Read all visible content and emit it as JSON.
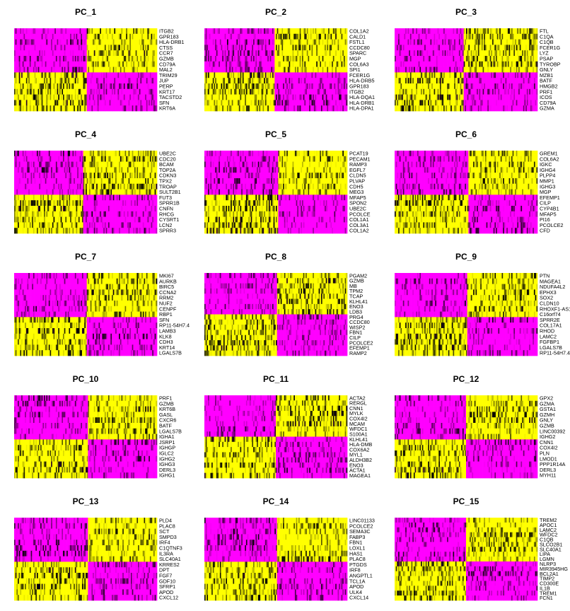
{
  "chart_data": {
    "type": "heatmap",
    "colorscale": {
      "low": "#ff00ff",
      "mid": "#000000",
      "high": "#ffff00"
    },
    "panels": [
      {
        "title": "PC_1",
        "genes": [
          "ITGB2",
          "GPR183",
          "HLA-DRB1",
          "CTSS",
          "CCR7",
          "GZMB",
          "CD79A",
          "MAL2",
          "TRIM29",
          "JUP",
          "PERP",
          "KRT17",
          "TACSTD2",
          "SFN",
          "KRT6A"
        ]
      },
      {
        "title": "PC_2",
        "genes": [
          "COL1A2",
          "CALD1",
          "FSTL1",
          "CCDC80",
          "SPARC",
          "MGP",
          "COL6A3",
          "SPI1",
          "FCER1G",
          "HLA-DRB5",
          "GPR183",
          "ITGB2",
          "HLA-DQA1",
          "HLA-DRB1",
          "HLA-DPA1"
        ]
      },
      {
        "title": "PC_3",
        "genes": [
          "FTL",
          "C1QA",
          "C1QB",
          "FCER1G",
          "LYZ",
          "PSAP",
          "TYROBP",
          "GNLY",
          "MZB1",
          "BATF",
          "HMGB2",
          "PRF1",
          "ICOS",
          "CD79A",
          "GZMA"
        ]
      },
      {
        "title": "PC_4",
        "genes": [
          "UBE2C",
          "CDC20",
          "BCAM",
          "TOP2A",
          "CDKN3",
          "TPX2",
          "TROAP",
          "SULT2B1",
          "FUT3",
          "SPRR1B",
          "CNFN",
          "RHCG",
          "CYSRT1",
          "LCN2",
          "SPRR3"
        ]
      },
      {
        "title": "PC_5",
        "genes": [
          "PCAT19",
          "PECAM1",
          "RAMP3",
          "EGFL7",
          "CLDN5",
          "PLVAP",
          "CDH5",
          "MEG3",
          "MFAP5",
          "SPON2",
          "UBE2C",
          "PCOLCE",
          "COL1A1",
          "COL3A1",
          "COL1A2"
        ]
      },
      {
        "title": "PC_6",
        "genes": [
          "GREM1",
          "COL6A2",
          "IGKC",
          "IGHG4",
          "PLPP4",
          "MMP1",
          "IGHG3",
          "MGP",
          "EFEMP1",
          "CILP",
          "CYP4B1",
          "MFAP5",
          "PI16",
          "PCOLCE2",
          "CFD"
        ]
      },
      {
        "title": "PC_7",
        "genes": [
          "MKI67",
          "AURKB",
          "BIRC5",
          "CCNA2",
          "RRM2",
          "NUF2",
          "CENPF",
          "RBP1",
          "SFN",
          "RP11-54H7.4",
          "LAMB3",
          "KLK8",
          "CDH3",
          "KRT14",
          "LGALS7B"
        ]
      },
      {
        "title": "PC_8",
        "genes": [
          "PGAM2",
          "GZMB",
          "MB",
          "TPM2",
          "TCAP",
          "KLHL41",
          "ENO3",
          "LDB3",
          "PRG4",
          "CCDC80",
          "WISP2",
          "FBN1",
          "CILP",
          "PCOLCE2",
          "EFEMP1",
          "RAMP2"
        ]
      },
      {
        "title": "PC_9",
        "genes": [
          "PTN",
          "MAGEA1",
          "NDUFA4L2",
          "EPHX3",
          "SOX2",
          "CLDN10",
          "RHOXF1-AS1",
          "C16orf74",
          "SPRR2E",
          "COL17A1",
          "RHOD",
          "LAMC2",
          "FGFBP1",
          "LGALS7B",
          "RP11-54H7.4"
        ]
      },
      {
        "title": "PC_10",
        "genes": [
          "PRF1",
          "GZMB",
          "KRT6B",
          "GASL",
          "CXCR6",
          "BATF",
          "LGALS7B",
          "IGHA1",
          "JSRP1",
          "IGHGP",
          "IGLC2",
          "IGHG2",
          "IGHG3",
          "DERL3",
          "IGHG1"
        ]
      },
      {
        "title": "PC_11",
        "genes": [
          "ACTA2",
          "RERGL",
          "CNN1",
          "MYLK",
          "COX4I2",
          "MCAM",
          "WFDC1",
          "S100A1",
          "KLHL41",
          "HLA-DMB",
          "COX6A2",
          "MYL1",
          "ALDH3B2",
          "ENO3",
          "ACTA1",
          "MAGEA1"
        ]
      },
      {
        "title": "PC_12",
        "genes": [
          "GPX2",
          "GZMA",
          "GSTA1",
          "GZMH",
          "GNLY",
          "GZMB",
          "LINC00392",
          "IGHG2",
          "CNN1",
          "COX4I2",
          "PLN",
          "LMOD1",
          "PPP1R14A",
          "DERL3",
          "MYH11"
        ]
      },
      {
        "title": "PC_13",
        "genes": [
          "PLD4",
          "PLAC8",
          "SCT",
          "SMPD3",
          "IRF4",
          "C1QTNF3",
          "IL3RA",
          "SLC40A1",
          "KRRES2",
          "DPT",
          "FGF7",
          "GDF10",
          "SFRP1",
          "APOD",
          "CXCL12"
        ]
      },
      {
        "title": "PC_14",
        "genes": [
          "LINC01133",
          "PCOLCE2",
          "SEMA3C",
          "FABP3",
          "FBN1",
          "LOXL1",
          "HAS1",
          "PLAC8",
          "PTGDS",
          "IRF8",
          "ANGPTL1",
          "TCL1A",
          "APOD",
          "ULK4",
          "CXCL14"
        ]
      },
      {
        "title": "PC_15",
        "genes": [
          "TREM2",
          "APOC1",
          "LAMC2",
          "WFDC2",
          "C1QB",
          "SLCO2B1",
          "SLC40A1",
          "LIPA",
          "LGMN",
          "NLRP3",
          "MIR3945HG",
          "BCL2A1",
          "TIMP2",
          "CD300E",
          "IL1B",
          "TREM1",
          "FCN1"
        ]
      }
    ]
  }
}
